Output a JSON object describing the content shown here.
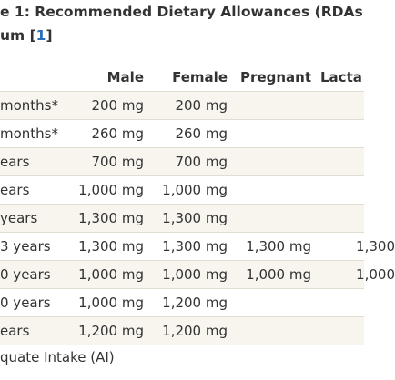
{
  "title": {
    "line1": "e 1: Recommended Dietary Allowances (RDAs",
    "prefix": "um [",
    "ref": "1",
    "suffix": "]"
  },
  "table": {
    "header": [
      "Male",
      "Female",
      "Pregnant",
      "Lacta"
    ],
    "rows": [
      {
        "label": "months*",
        "cells": [
          "200 mg",
          "200 mg"
        ]
      },
      {
        "label": "months*",
        "cells": [
          "260 mg",
          "260 mg"
        ]
      },
      {
        "label": "ears",
        "cells": [
          "700 mg",
          "700 mg"
        ]
      },
      {
        "label": "ears",
        "cells": [
          "1,000 mg",
          "1,000 mg"
        ]
      },
      {
        "label": "years",
        "cells": [
          "1,300 mg",
          "1,300 mg"
        ]
      },
      {
        "label": "3 years",
        "cells": [
          "1,300 mg",
          "1,300 mg",
          "1,300 mg",
          "1,300"
        ]
      },
      {
        "label": "0 years",
        "cells": [
          "1,000 mg",
          "1,000 mg",
          "1,000 mg",
          "1,000"
        ]
      },
      {
        "label": "0 years",
        "cells": [
          "1,000 mg",
          "1,200 mg"
        ]
      },
      {
        "label": "ears",
        "cells": [
          "1,200 mg",
          "1,200 mg"
        ]
      }
    ]
  },
  "footnote": "quate Intake (AI)"
}
